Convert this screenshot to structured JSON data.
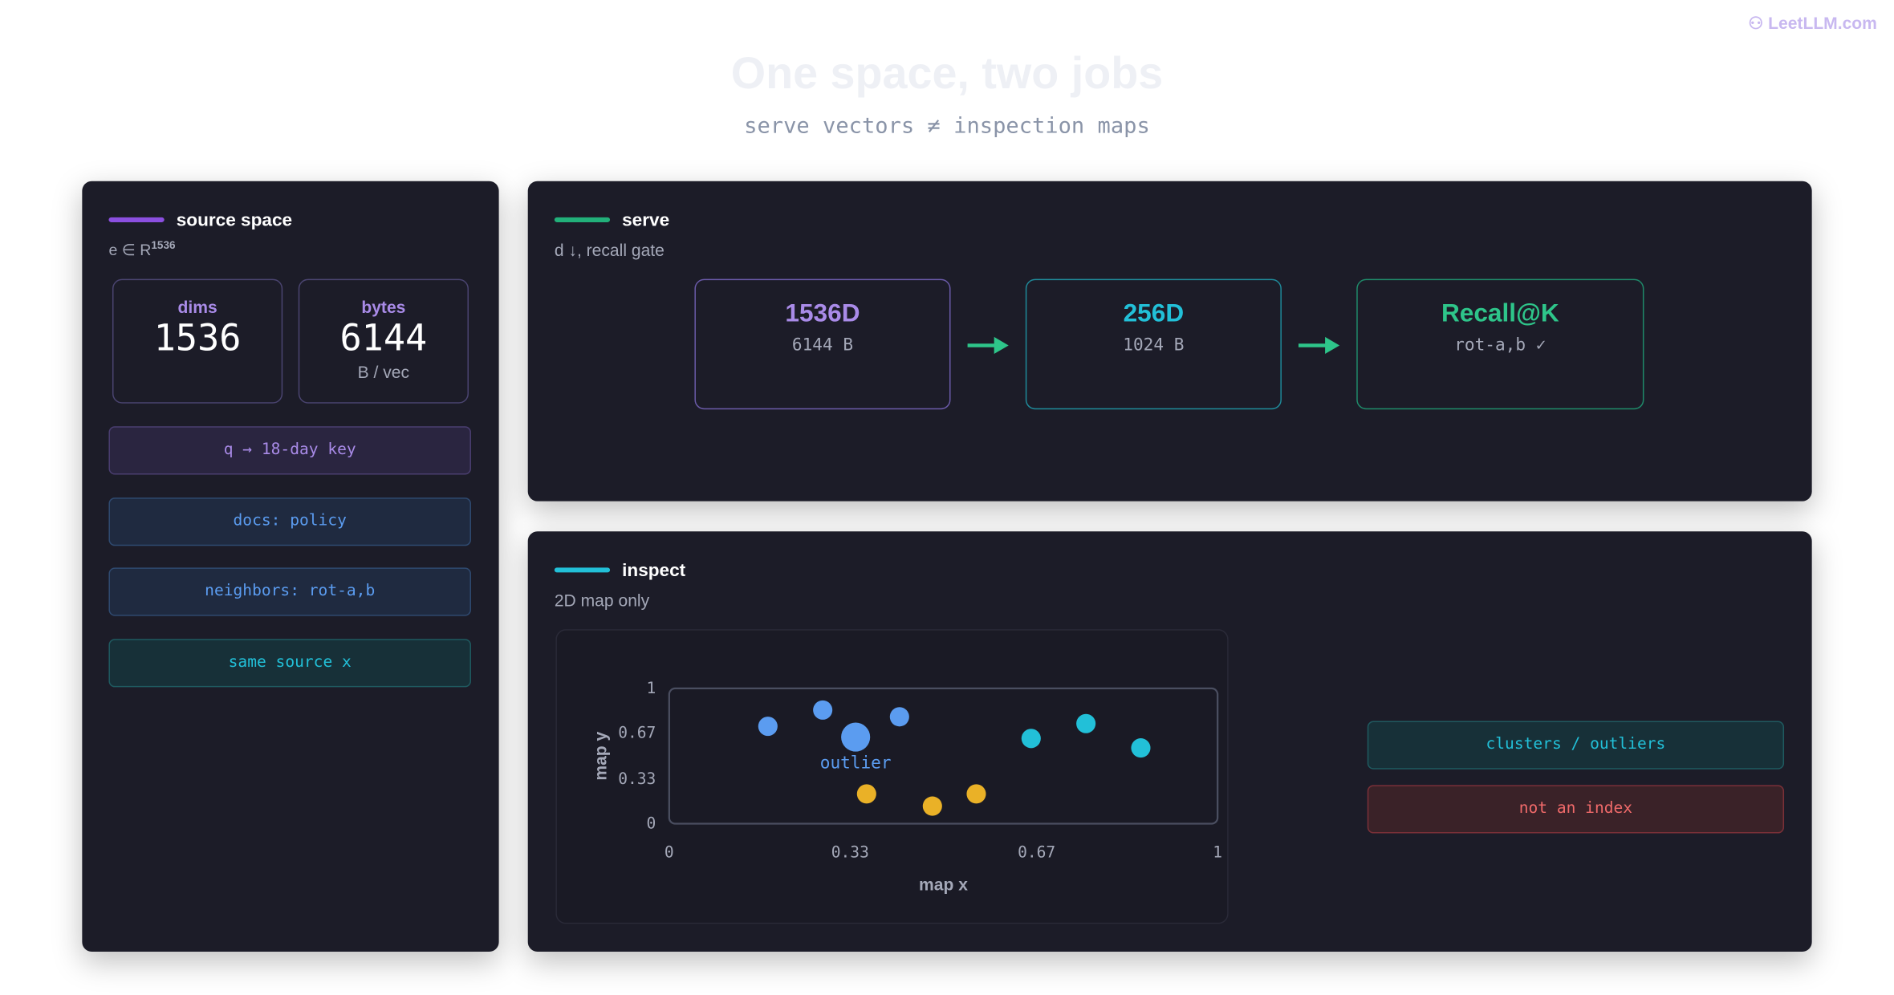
{
  "header": {
    "brand": "LeetLLM.com",
    "title": "One space, two jobs",
    "subtitle": "serve vectors ≠ inspection maps"
  },
  "source_panel": {
    "title": "source space",
    "formula": "e ∈ R",
    "formula_sup": "1536",
    "stats": [
      {
        "label": "dims",
        "value": "1536"
      },
      {
        "label": "bytes",
        "value": "6144",
        "unit": "B / vec"
      }
    ],
    "tags": [
      "q → 18-day key",
      "docs: policy",
      "neighbors: rot-a,b",
      "same source x"
    ]
  },
  "serve_panel": {
    "title": "serve",
    "subtitle": "d ↓, recall gate",
    "boxes": [
      {
        "title": "1536D",
        "detail": "6144 B"
      },
      {
        "title": "256D",
        "detail": "1024 B"
      },
      {
        "title": "Recall@K",
        "detail": "rot-a,b ✓"
      }
    ]
  },
  "inspect_panel": {
    "title": "inspect",
    "subtitle": "2D map only",
    "tags": [
      "clusters / outliers",
      "not an index"
    ]
  },
  "chart_data": {
    "type": "scatter",
    "xlabel": "map x",
    "ylabel": "map y",
    "xlim": [
      0,
      1
    ],
    "ylim": [
      0,
      1
    ],
    "xticks": [
      0,
      0.33,
      0.67,
      1
    ],
    "yticks": [
      0,
      0.33,
      0.67,
      1
    ],
    "series": [
      {
        "color": "#5b9cf0",
        "x": [
          0.18,
          0.28,
          0.42
        ],
        "values": [
          0.72,
          0.84,
          0.79
        ]
      },
      {
        "color": "#5b9cf0",
        "label": "outlier",
        "x": [
          0.34
        ],
        "values": [
          0.64
        ]
      },
      {
        "color": "#22c0d8",
        "x": [
          0.66,
          0.76,
          0.86
        ],
        "values": [
          0.63,
          0.74,
          0.56
        ]
      },
      {
        "color": "#eab127",
        "x": [
          0.36,
          0.48,
          0.56
        ],
        "values": [
          0.22,
          0.13,
          0.22
        ]
      }
    ]
  }
}
